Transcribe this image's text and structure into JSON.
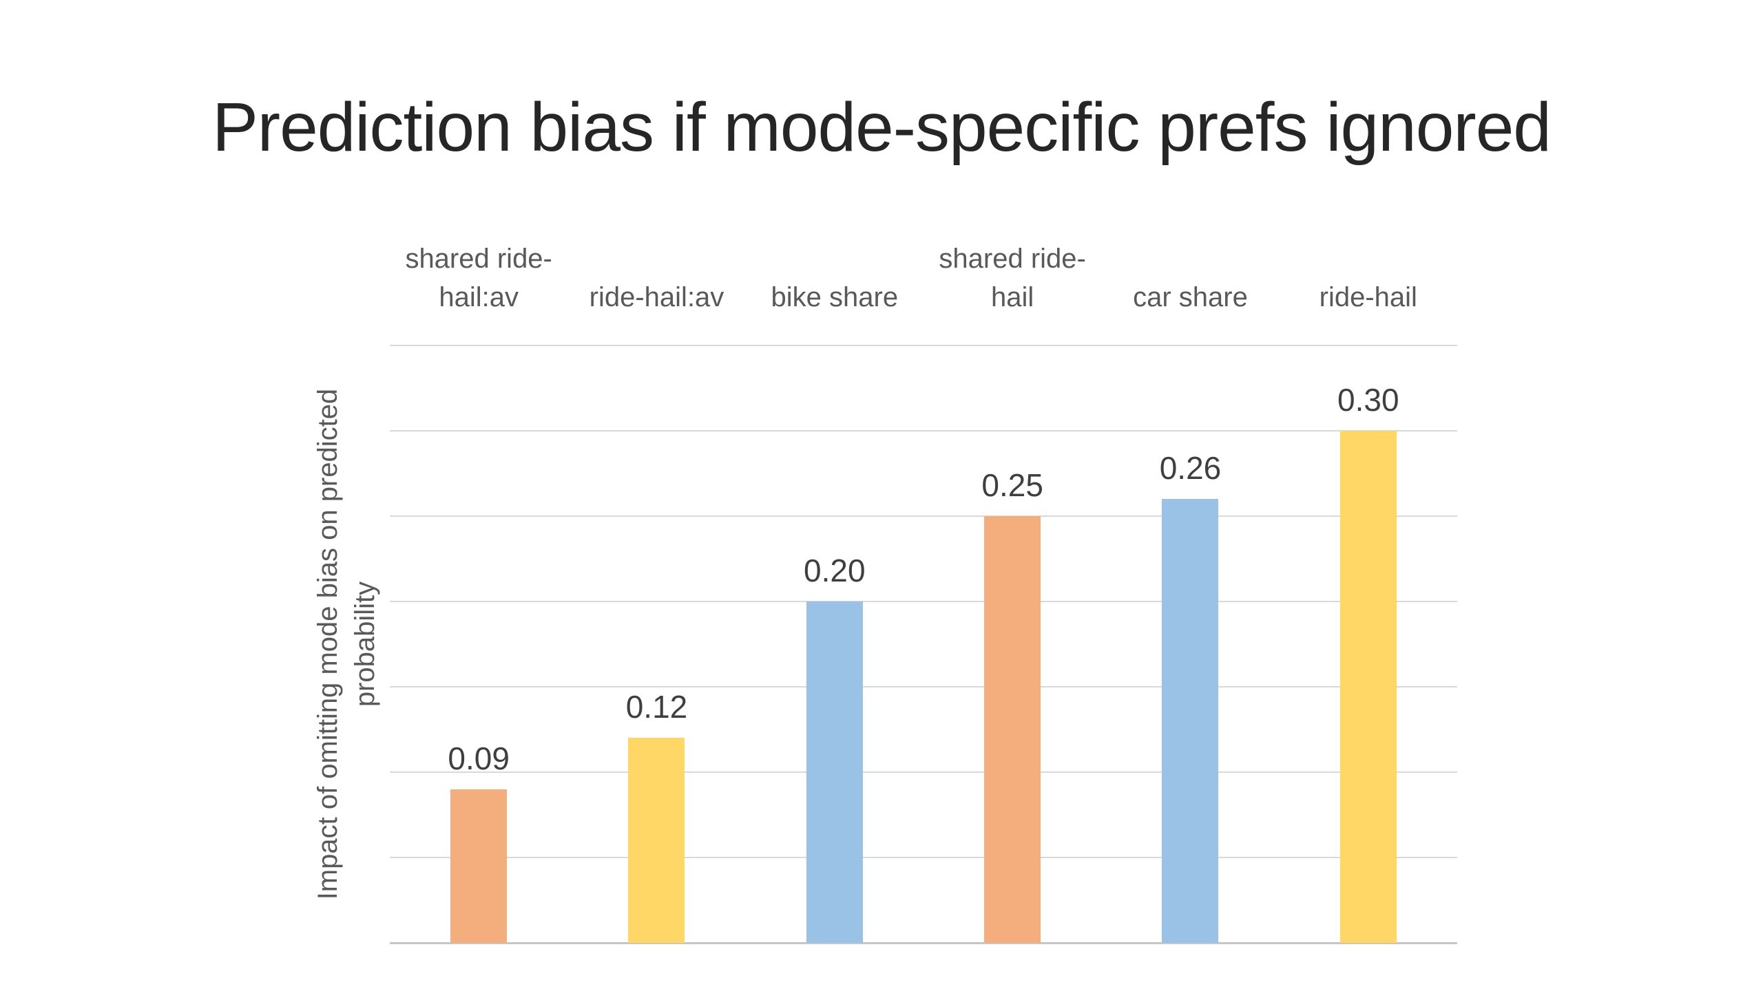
{
  "slide": {
    "title": "Prediction bias if mode-specific prefs ignored",
    "background_color": "#ffffff"
  },
  "chart_data": {
    "type": "bar",
    "title": "Prediction bias if mode-specific prefs ignored",
    "categories": [
      "shared ride-\nhail:av",
      "ride-hail:av",
      "bike share",
      "shared ride-\nhail",
      "car share",
      "ride-hail"
    ],
    "values": [
      0.09,
      0.12,
      0.2,
      0.25,
      0.26,
      0.3
    ],
    "data_labels": [
      "0.09",
      "0.12",
      "0.20",
      "0.25",
      "0.26",
      "0.30"
    ],
    "bar_colors": [
      "#F4AE7E",
      "#FED766",
      "#9AC1E6",
      "#F4AE7E",
      "#9AC1E6",
      "#FED766"
    ],
    "xlabel": "",
    "ylabel": "Impact of omitting mode bias on predicted\nprobability",
    "ylim": [
      0,
      0.35
    ],
    "gridline_step": 0.05,
    "y_tick_labels_visible": false,
    "grid": "horizontal",
    "legend_position": "none",
    "category_label_position": "above-plot",
    "colors": {
      "title_text": "#262626",
      "category_text": "#595959",
      "data_label_text": "#3F3F3F",
      "gridline": "#D9D9D9",
      "axis_line": "#C6C6C6"
    }
  }
}
